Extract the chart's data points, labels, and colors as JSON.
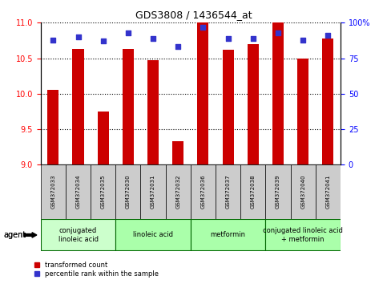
{
  "title": "GDS3808 / 1436544_at",
  "samples": [
    "GSM372033",
    "GSM372034",
    "GSM372035",
    "GSM372030",
    "GSM372031",
    "GSM372032",
    "GSM372036",
    "GSM372037",
    "GSM372038",
    "GSM372039",
    "GSM372040",
    "GSM372041"
  ],
  "bar_values": [
    10.06,
    10.63,
    9.75,
    10.63,
    10.47,
    9.33,
    11.0,
    10.62,
    10.7,
    11.0,
    10.5,
    10.78
  ],
  "bar_base": 9.0,
  "percentile_vals": [
    88,
    90,
    87,
    93,
    89,
    83,
    97,
    89,
    89,
    93,
    88,
    91
  ],
  "ylim_left": [
    9.0,
    11.0
  ],
  "ylim_right": [
    0,
    100
  ],
  "yticks_left": [
    9.0,
    9.5,
    10.0,
    10.5,
    11.0
  ],
  "yticks_right": [
    0,
    25,
    50,
    75,
    100
  ],
  "yticklabels_right": [
    "0",
    "25",
    "50",
    "75",
    "100%"
  ],
  "bar_color": "#CC0000",
  "dot_color": "#3333CC",
  "groups": [
    {
      "label": "conjugated\nlinoleic acid",
      "start": 0,
      "end": 3,
      "color": "#ccffcc"
    },
    {
      "label": "linoleic acid",
      "start": 3,
      "end": 6,
      "color": "#aaffaa"
    },
    {
      "label": "metformin",
      "start": 6,
      "end": 9,
      "color": "#aaffaa"
    },
    {
      "label": "conjugated linoleic acid\n+ metformin",
      "start": 9,
      "end": 12,
      "color": "#aaffaa"
    }
  ],
  "group_border_color": "#006600",
  "sample_bg_color": "#cccccc",
  "legend_items": [
    {
      "color": "#CC0000",
      "label": "transformed count"
    },
    {
      "color": "#3333CC",
      "label": "percentile rank within the sample"
    }
  ],
  "title_fontsize": 9,
  "axis_fontsize": 7,
  "tick_fontsize": 7,
  "sample_fontsize": 5,
  "group_fontsize": 6,
  "legend_fontsize": 6
}
